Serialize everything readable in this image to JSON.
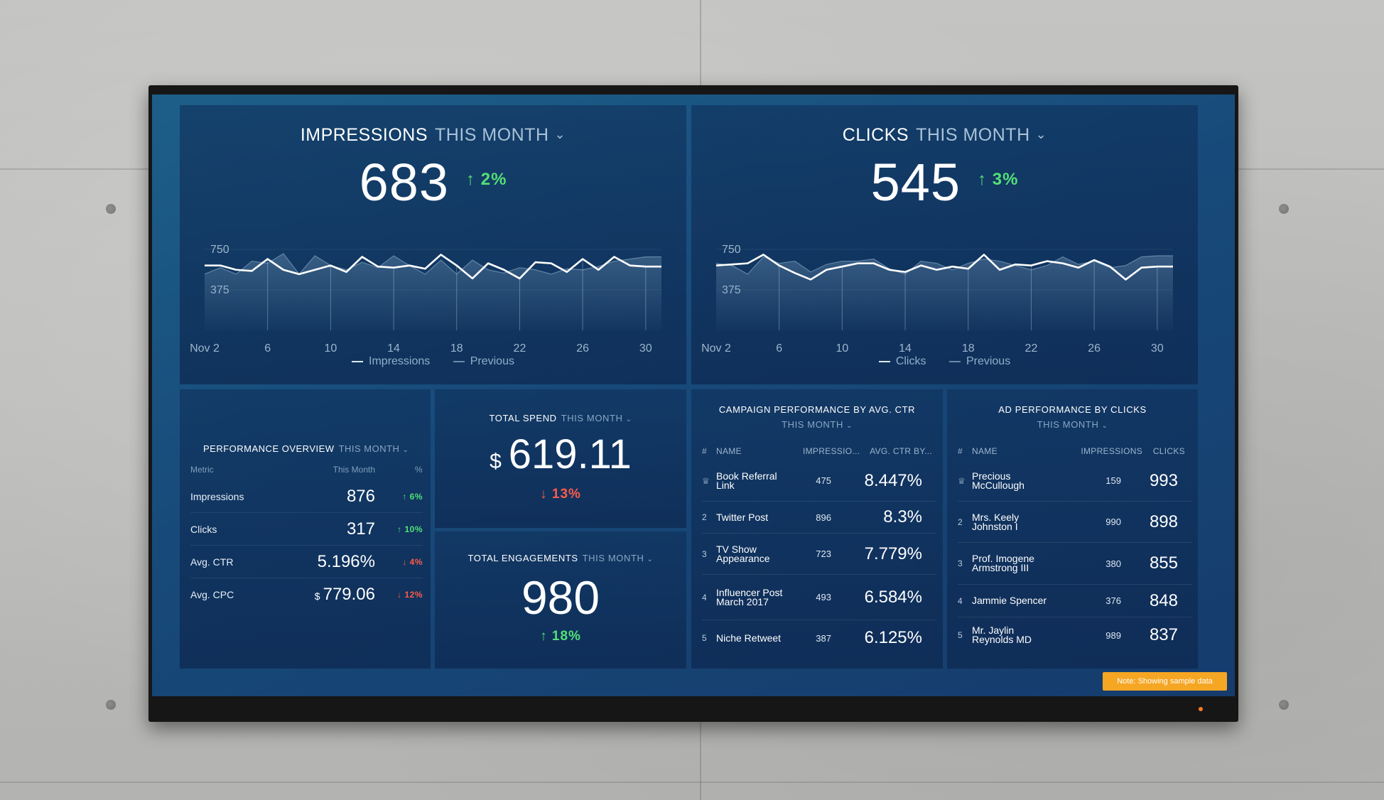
{
  "impressions_card": {
    "title": "IMPRESSIONS",
    "period": "THIS MONTH",
    "value": "683",
    "change": "2%",
    "legend_primary": "Impressions",
    "legend_previous": "Previous"
  },
  "clicks_card": {
    "title": "CLICKS",
    "period": "THIS MONTH",
    "value": "545",
    "change": "3%",
    "legend_primary": "Clicks",
    "legend_previous": "Previous"
  },
  "performance_overview": {
    "title": "PERFORMANCE OVERVIEW",
    "period": "THIS MONTH",
    "headers": {
      "metric": "Metric",
      "month": "This Month",
      "pct": "%"
    },
    "rows": [
      {
        "metric": "Impressions",
        "currency": "",
        "value": "876",
        "dir": "up",
        "change": "6%"
      },
      {
        "metric": "Clicks",
        "currency": "",
        "value": "317",
        "dir": "up",
        "change": "10%"
      },
      {
        "metric": "Avg. CTR",
        "currency": "",
        "value": "5.196%",
        "dir": "down",
        "change": "4%"
      },
      {
        "metric": "Avg. CPC",
        "currency": "$",
        "value": "779.06",
        "dir": "down",
        "change": "12%"
      }
    ]
  },
  "total_spend": {
    "title": "TOTAL SPEND",
    "period": "THIS MONTH",
    "currency": "$",
    "value": "619.11",
    "change": "13%"
  },
  "total_engagements": {
    "title": "TOTAL ENGAGEMENTS",
    "period": "THIS MONTH",
    "value": "980",
    "change": "18%"
  },
  "campaign_performance": {
    "title": "CAMPAIGN PERFORMANCE BY AVG. CTR",
    "period": "THIS MONTH",
    "headers": {
      "num": "#",
      "name": "NAME",
      "mid": "IMPRESSIO...",
      "val": "AVG. CTR BY..."
    },
    "rows": [
      {
        "rank": "1",
        "name": "Book Referral Link",
        "mid": "475",
        "val": "8.447%"
      },
      {
        "rank": "2",
        "name": "Twitter Post",
        "mid": "896",
        "val": "8.3%"
      },
      {
        "rank": "3",
        "name": "TV Show Appearance",
        "mid": "723",
        "val": "7.779%"
      },
      {
        "rank": "4",
        "name": "Influencer Post March 2017",
        "mid": "493",
        "val": "6.584%"
      },
      {
        "rank": "5",
        "name": "Niche Retweet",
        "mid": "387",
        "val": "6.125%"
      }
    ]
  },
  "ad_performance": {
    "title": "AD PERFORMANCE BY CLICKS",
    "period": "THIS MONTH",
    "headers": {
      "num": "#",
      "name": "NAME",
      "mid": "IMPRESSIONS",
      "val": "CLICKS"
    },
    "rows": [
      {
        "rank": "1",
        "name": "Precious McCullough",
        "mid": "159",
        "val": "993"
      },
      {
        "rank": "2",
        "name": "Mrs. Keely Johnston I",
        "mid": "990",
        "val": "898"
      },
      {
        "rank": "3",
        "name": "Prof. Imogene Armstrong III",
        "mid": "380",
        "val": "855"
      },
      {
        "rank": "4",
        "name": "Jammie Spencer",
        "mid": "376",
        "val": "848"
      },
      {
        "rank": "5",
        "name": "Mr. Jaylin Reynolds MD",
        "mid": "989",
        "val": "837"
      }
    ]
  },
  "note": "Note: Showing sample data",
  "colors": {
    "up": "#53e076",
    "down": "#ff5a4a",
    "note_bg": "#f5a623"
  },
  "icons": {
    "dropdown": "chevron-down-icon",
    "trophy": "trophy-icon",
    "up": "arrow-up-icon",
    "down": "arrow-down-icon"
  },
  "chart_data": [
    {
      "type": "line",
      "x": [
        "Nov 2",
        "3",
        "4",
        "5",
        "6",
        "7",
        "8",
        "9",
        "10",
        "11",
        "12",
        "13",
        "14",
        "15",
        "16",
        "17",
        "18",
        "19",
        "20",
        "21",
        "22",
        "23",
        "24",
        "25",
        "26",
        "27",
        "28",
        "29",
        "30",
        "Dec 1"
      ],
      "xticks": [
        "Nov 2",
        "6",
        "10",
        "14",
        "18",
        "22",
        "26",
        "30"
      ],
      "yticks": [
        "750",
        "375"
      ],
      "ylim": [
        0,
        900
      ],
      "series": [
        {
          "name": "Impressions",
          "values": [
            600,
            600,
            560,
            550,
            660,
            560,
            520,
            560,
            600,
            540,
            680,
            590,
            580,
            600,
            570,
            700,
            600,
            480,
            620,
            560,
            480,
            630,
            620,
            540,
            660,
            560,
            680,
            600,
            590,
            590
          ]
        },
        {
          "name": "Previous",
          "values": [
            520,
            580,
            520,
            640,
            620,
            710,
            520,
            690,
            600,
            560,
            630,
            580,
            690,
            600,
            520,
            650,
            520,
            650,
            560,
            530,
            580,
            560,
            520,
            570,
            560,
            590,
            640,
            660,
            680,
            680
          ]
        }
      ]
    },
    {
      "type": "line",
      "x": [
        "Nov 2",
        "3",
        "4",
        "5",
        "6",
        "7",
        "8",
        "9",
        "10",
        "11",
        "12",
        "13",
        "14",
        "15",
        "16",
        "17",
        "18",
        "19",
        "20",
        "21",
        "22",
        "23",
        "24",
        "25",
        "26",
        "27",
        "28",
        "29",
        "30",
        "Dec 1"
      ],
      "xticks": [
        "Nov 2",
        "6",
        "10",
        "14",
        "18",
        "22",
        "26",
        "30"
      ],
      "yticks": [
        "750",
        "375"
      ],
      "ylim": [
        0,
        900
      ],
      "series": [
        {
          "name": "Clicks",
          "values": [
            600,
            610,
            620,
            700,
            600,
            530,
            470,
            560,
            590,
            620,
            620,
            560,
            540,
            600,
            560,
            590,
            570,
            700,
            560,
            610,
            600,
            640,
            620,
            580,
            650,
            590,
            470,
            580,
            590,
            590
          ]
        },
        {
          "name": "Previous",
          "values": [
            620,
            600,
            520,
            680,
            620,
            640,
            540,
            610,
            640,
            640,
            660,
            570,
            520,
            640,
            620,
            560,
            620,
            660,
            640,
            600,
            560,
            600,
            680,
            610,
            640,
            580,
            600,
            680,
            690,
            690
          ]
        }
      ]
    }
  ]
}
